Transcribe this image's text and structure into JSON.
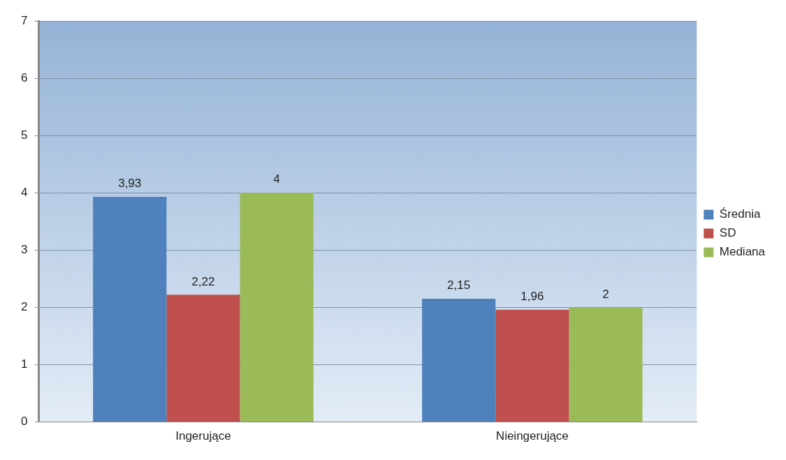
{
  "chart_data": {
    "type": "bar",
    "categories": [
      "Ingerujące",
      "Nieingerujące"
    ],
    "series": [
      {
        "name": "Średnia",
        "color": "#4f81bd",
        "values": [
          3.93,
          2.15
        ],
        "value_labels": [
          "3,93",
          "2,15"
        ]
      },
      {
        "name": "SD",
        "color": "#c0504d",
        "values": [
          2.22,
          1.96
        ],
        "value_labels": [
          "2,22",
          "1,96"
        ]
      },
      {
        "name": "Mediana",
        "color": "#9bbb59",
        "values": [
          4,
          2
        ],
        "value_labels": [
          "4",
          "2"
        ]
      }
    ],
    "ylim": [
      0,
      7
    ],
    "yticks": [
      0,
      1,
      2,
      3,
      4,
      5,
      6,
      7
    ],
    "grid": "y",
    "legend": "right"
  }
}
